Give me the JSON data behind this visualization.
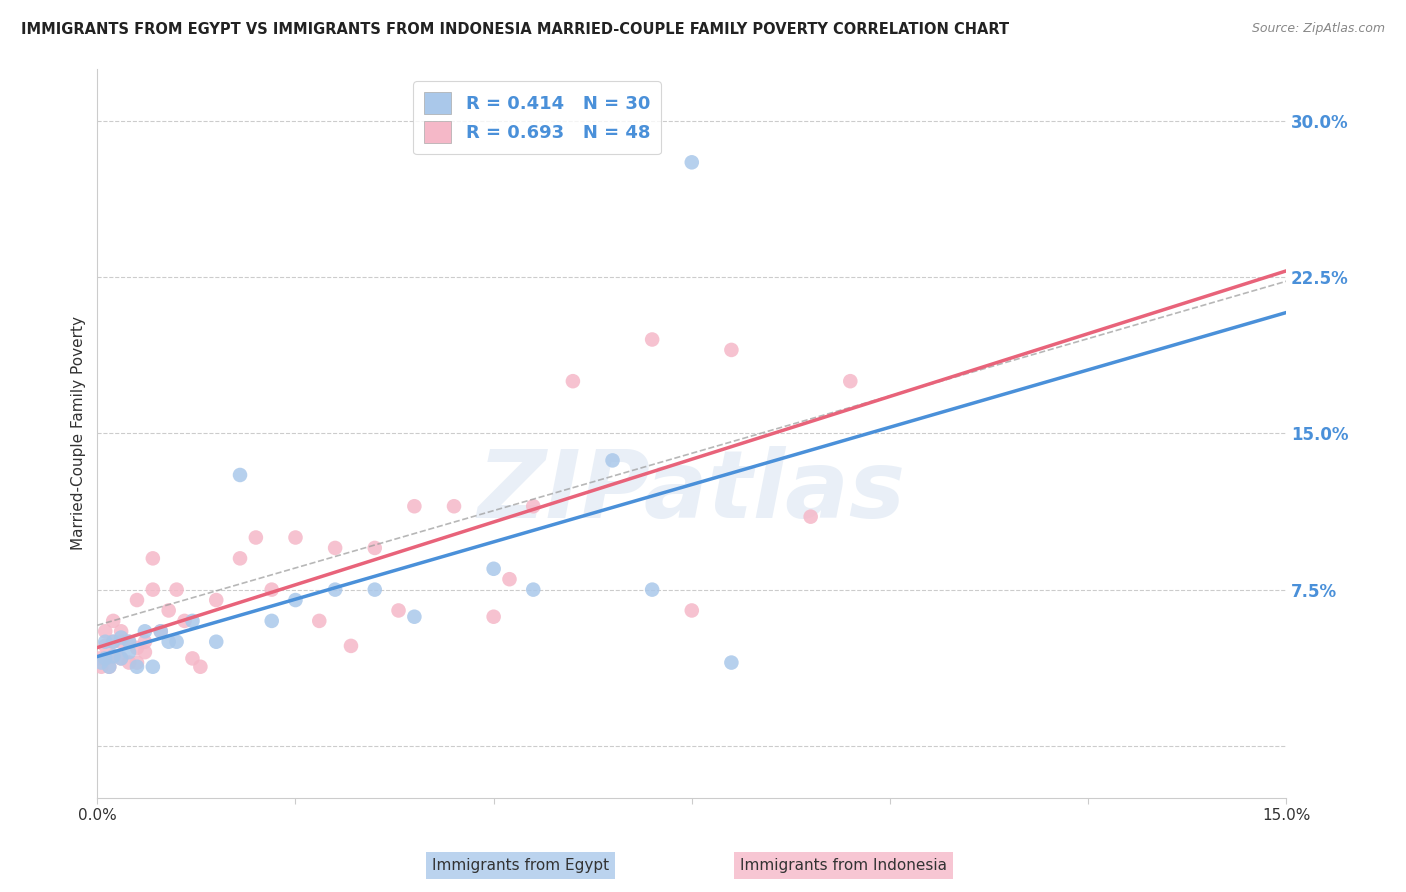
{
  "title": "IMMIGRANTS FROM EGYPT VS IMMIGRANTS FROM INDONESIA MARRIED-COUPLE FAMILY POVERTY CORRELATION CHART",
  "source": "Source: ZipAtlas.com",
  "ylabel": "Married-Couple Family Poverty",
  "xlim": [
    0.0,
    0.15
  ],
  "ylim": [
    -0.025,
    0.325
  ],
  "xtick_pos": [
    0.0,
    0.025,
    0.05,
    0.075,
    0.1,
    0.125,
    0.15
  ],
  "xtick_labels": [
    "0.0%",
    "",
    "",
    "",
    "",
    "",
    "15.0%"
  ],
  "ytick_pos": [
    0.0,
    0.075,
    0.15,
    0.225,
    0.3
  ],
  "ytick_labels": [
    "",
    "7.5%",
    "15.0%",
    "22.5%",
    "30.0%"
  ],
  "grid_color": "#cccccc",
  "background_color": "#ffffff",
  "watermark": "ZIPatlas",
  "egypt_color": "#aac8ea",
  "egypt_color_dark": "#4a90d9",
  "indonesia_color": "#f5b8c8",
  "indonesia_color_dark": "#e8637a",
  "egypt_R": 0.414,
  "egypt_N": 30,
  "indonesia_R": 0.693,
  "indonesia_N": 48,
  "egypt_x": [
    0.0005,
    0.001,
    0.001,
    0.0015,
    0.002,
    0.002,
    0.003,
    0.003,
    0.004,
    0.004,
    0.005,
    0.006,
    0.007,
    0.008,
    0.009,
    0.01,
    0.012,
    0.015,
    0.018,
    0.022,
    0.025,
    0.03,
    0.035,
    0.04,
    0.05,
    0.055,
    0.065,
    0.07,
    0.075,
    0.08
  ],
  "egypt_y": [
    0.04,
    0.042,
    0.05,
    0.038,
    0.043,
    0.05,
    0.042,
    0.052,
    0.045,
    0.05,
    0.038,
    0.055,
    0.038,
    0.055,
    0.05,
    0.05,
    0.06,
    0.05,
    0.13,
    0.06,
    0.07,
    0.075,
    0.075,
    0.062,
    0.085,
    0.075,
    0.137,
    0.075,
    0.28,
    0.04
  ],
  "indonesia_x": [
    0.0003,
    0.0005,
    0.001,
    0.001,
    0.001,
    0.0015,
    0.002,
    0.002,
    0.002,
    0.003,
    0.003,
    0.003,
    0.004,
    0.004,
    0.005,
    0.005,
    0.005,
    0.006,
    0.006,
    0.007,
    0.007,
    0.008,
    0.009,
    0.01,
    0.011,
    0.012,
    0.013,
    0.015,
    0.018,
    0.02,
    0.022,
    0.025,
    0.028,
    0.03,
    0.032,
    0.035,
    0.038,
    0.04,
    0.045,
    0.05,
    0.052,
    0.055,
    0.06,
    0.07,
    0.075,
    0.08,
    0.09,
    0.095
  ],
  "indonesia_y": [
    0.042,
    0.038,
    0.042,
    0.048,
    0.055,
    0.038,
    0.043,
    0.05,
    0.06,
    0.042,
    0.05,
    0.055,
    0.04,
    0.05,
    0.04,
    0.047,
    0.07,
    0.045,
    0.05,
    0.09,
    0.075,
    0.055,
    0.065,
    0.075,
    0.06,
    0.042,
    0.038,
    0.07,
    0.09,
    0.1,
    0.075,
    0.1,
    0.06,
    0.095,
    0.048,
    0.095,
    0.065,
    0.115,
    0.115,
    0.062,
    0.08,
    0.115,
    0.175,
    0.195,
    0.065,
    0.19,
    0.11,
    0.175
  ]
}
